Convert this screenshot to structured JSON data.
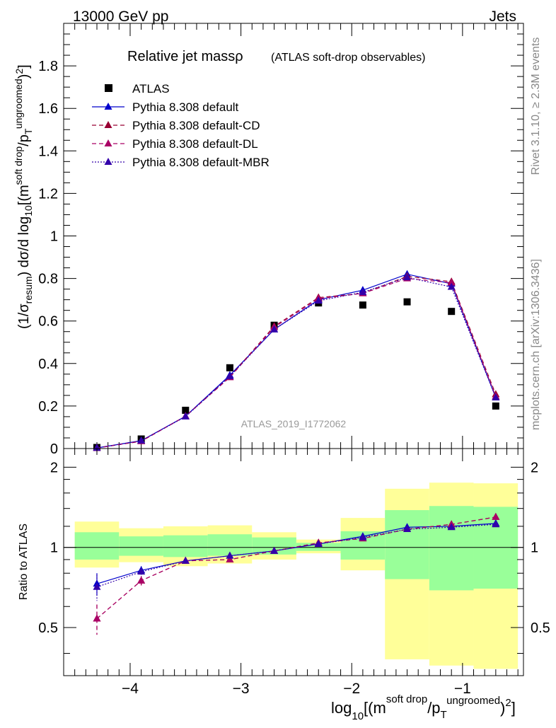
{
  "header": {
    "left": "13000 GeV pp",
    "right": "Jets"
  },
  "side_labels": {
    "rivet": "Rivet 3.1.10, ≥ 2.3M events",
    "mcplots": "mcplots.cern.ch [arXiv:1306.3436]"
  },
  "chart_data": [
    {
      "type": "scatter",
      "title": "Relative jet massρ",
      "subtitle": "(ATLAS soft-drop observables)",
      "watermark": "ATLAS_2019_I1772062",
      "ylabel": "(1/σresum) dσ/d log10[(m soft drop/pT ungroomed)2]",
      "xlim": [
        -4.6,
        -0.45
      ],
      "ylim": [
        0,
        2.0
      ],
      "y_ticks": [
        {
          "value": 0,
          "label": "0"
        },
        {
          "value": 0.2,
          "label": "0.2"
        },
        {
          "value": 0.4,
          "label": "0.4"
        },
        {
          "value": 0.6,
          "label": "0.6"
        },
        {
          "value": 0.8,
          "label": "0.8"
        },
        {
          "value": 1.0,
          "label": "1"
        },
        {
          "value": 1.2,
          "label": "1.2"
        },
        {
          "value": 1.4,
          "label": "1.4"
        },
        {
          "value": 1.6,
          "label": "1.6"
        },
        {
          "value": 1.8,
          "label": "1.8"
        }
      ],
      "legend_position": "top-left",
      "x": [
        -4.3,
        -3.9,
        -3.5,
        -3.1,
        -2.7,
        -2.3,
        -1.9,
        -1.5,
        -1.1,
        -0.7
      ],
      "series": [
        {
          "name": "ATLAS",
          "color": "#000000",
          "marker": "square",
          "line": "none",
          "values": [
            0.005,
            0.045,
            0.18,
            0.38,
            0.58,
            0.685,
            0.675,
            0.69,
            0.645,
            0.2
          ]
        },
        {
          "name": "Pythia 8.308 default",
          "color": "#0000cc",
          "marker": "triangle",
          "line": "solid",
          "values": [
            0.003,
            0.037,
            0.152,
            0.345,
            0.56,
            0.7,
            0.745,
            0.82,
            0.775,
            0.24
          ]
        },
        {
          "name": "Pythia 8.308 default-CD",
          "color": "#990033",
          "marker": "triangle",
          "line": "dashed",
          "values": [
            0.003,
            0.034,
            0.152,
            0.338,
            0.575,
            0.71,
            0.73,
            0.81,
            0.785,
            0.255
          ]
        },
        {
          "name": "Pythia 8.308 default-DL",
          "color": "#aa0066",
          "marker": "triangle",
          "line": "dashed",
          "values": [
            0.002,
            0.035,
            0.152,
            0.335,
            0.57,
            0.705,
            0.73,
            0.8,
            0.78,
            0.245
          ]
        },
        {
          "name": "Pythia 8.308 default-MBR",
          "color": "#3300aa",
          "marker": "triangle",
          "line": "dotted",
          "values": [
            0.003,
            0.037,
            0.15,
            0.34,
            0.56,
            0.695,
            0.735,
            0.805,
            0.76,
            0.24
          ]
        }
      ]
    },
    {
      "type": "scatter",
      "title": "",
      "ylabel": "Ratio to ATLAS",
      "xlabel": "log10[(m soft drop/pT ungroomed)2]",
      "xlim": [
        -4.6,
        -0.45
      ],
      "ylim": [
        0.33,
        2.35
      ],
      "y_scale": "log",
      "y_ticks": [
        {
          "value": 0.5,
          "label": "0.5"
        },
        {
          "value": 1,
          "label": "1"
        },
        {
          "value": 2,
          "label": "2"
        }
      ],
      "x_ticks": [
        {
          "value": -4,
          "label": "−4"
        },
        {
          "value": -3,
          "label": "−3"
        },
        {
          "value": -2,
          "label": "−2"
        },
        {
          "value": -1,
          "label": "−1"
        }
      ],
      "bins": [
        [
          -4.5,
          -4.1
        ],
        [
          -4.1,
          -3.7
        ],
        [
          -3.7,
          -3.3
        ],
        [
          -3.3,
          -2.9
        ],
        [
          -2.9,
          -2.5
        ],
        [
          -2.5,
          -2.1
        ],
        [
          -2.1,
          -1.7
        ],
        [
          -1.7,
          -1.3
        ],
        [
          -1.3,
          -0.9
        ],
        [
          -0.9,
          -0.5
        ]
      ],
      "band_yellow": [
        [
          0.84,
          1.25
        ],
        [
          0.88,
          1.18
        ],
        [
          0.85,
          1.2
        ],
        [
          0.87,
          1.21
        ],
        [
          0.9,
          1.14
        ],
        [
          0.95,
          1.07
        ],
        [
          0.82,
          1.29
        ],
        [
          0.38,
          1.66
        ],
        [
          0.36,
          1.75
        ],
        [
          0.35,
          1.74
        ]
      ],
      "band_green": [
        [
          0.9,
          1.14
        ],
        [
          0.93,
          1.1
        ],
        [
          0.92,
          1.11
        ],
        [
          0.93,
          1.12
        ],
        [
          0.94,
          1.09
        ],
        [
          0.97,
          1.04
        ],
        [
          0.9,
          1.15
        ],
        [
          0.76,
          1.38
        ],
        [
          0.69,
          1.43
        ],
        [
          0.7,
          1.42
        ]
      ],
      "x": [
        -4.3,
        -3.9,
        -3.5,
        -3.1,
        -2.7,
        -2.3,
        -1.9,
        -1.5,
        -1.1,
        -0.7
      ],
      "series": [
        {
          "name": "Pythia 8.308 default",
          "color": "#0000cc",
          "line": "solid",
          "values": [
            0.73,
            0.82,
            0.89,
            0.93,
            0.97,
            1.03,
            1.1,
            1.19,
            1.2,
            1.23
          ],
          "errors": [
            0.07,
            0.03,
            0.01,
            0.01,
            0.01,
            0.01,
            0.01,
            0.01,
            0.01,
            0.01
          ]
        },
        {
          "name": "Pythia 8.308 default-CD",
          "color": "#990033",
          "line": "dashed",
          "values": [
            0.54,
            0.75,
            0.89,
            0.9,
            0.97,
            1.04,
            1.08,
            1.17,
            1.22,
            1.3
          ],
          "errors": [
            0.07,
            0.03,
            0.01,
            0.01,
            0.01,
            0.01,
            0.01,
            0.01,
            0.01,
            0.01
          ]
        },
        {
          "name": "Pythia 8.308 default-DL",
          "color": "#aa0066",
          "line": "dashed",
          "values": [
            0.54,
            0.75,
            0.89,
            0.9,
            0.97,
            1.04,
            1.08,
            1.17,
            1.22,
            1.3
          ],
          "errors": [
            0.07,
            0.03,
            0.01,
            0.01,
            0.01,
            0.01,
            0.01,
            0.01,
            0.01,
            0.01
          ]
        },
        {
          "name": "Pythia 8.308 default-MBR",
          "color": "#3300aa",
          "line": "dotted",
          "values": [
            0.71,
            0.81,
            0.89,
            0.93,
            0.97,
            1.03,
            1.09,
            1.17,
            1.19,
            1.22
          ],
          "errors": [
            0.08,
            0.03,
            0.01,
            0.01,
            0.01,
            0.01,
            0.01,
            0.01,
            0.01,
            0.01
          ]
        }
      ]
    }
  ]
}
